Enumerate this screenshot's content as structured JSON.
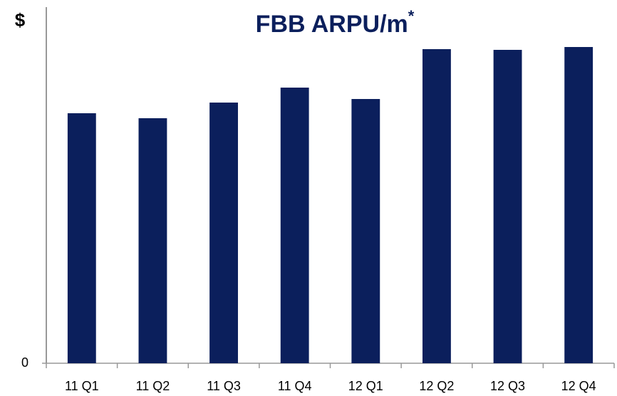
{
  "chart_data": {
    "type": "bar",
    "title": "FBB ARPU/m",
    "title_note": "*",
    "y_label": "$",
    "categories": [
      "11 Q1",
      "11 Q2",
      "11 Q3",
      "11 Q4",
      "12 Q1",
      "12 Q2",
      "12 Q3",
      "12 Q4"
    ],
    "values": [
      70.2,
      68.8,
      73.2,
      77.4,
      74.2,
      88.2,
      88,
      88.8
    ],
    "color": "#0b1f5c",
    "ylim": [
      0,
      100
    ],
    "yticks": [
      0
    ],
    "grid": false
  }
}
